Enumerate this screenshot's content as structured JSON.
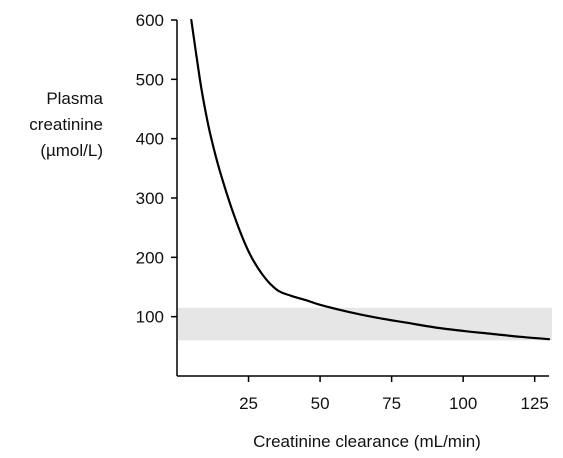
{
  "chart_data": {
    "type": "line",
    "title": "",
    "xlabel": "Creatinine clearance (mL/min)",
    "ylabel_lines": [
      "Plasma",
      "creatinine",
      "(µmol/L)"
    ],
    "xlim": [
      0,
      130
    ],
    "ylim": [
      0,
      600
    ],
    "x_ticks": [
      25,
      50,
      75,
      100,
      125
    ],
    "y_ticks": [
      100,
      200,
      300,
      400,
      500,
      600
    ],
    "grid": false,
    "reference_band": {
      "y_range": [
        60,
        115
      ],
      "color": "#e6e6e6"
    },
    "series": [
      {
        "color": "#000000",
        "x": [
          5,
          8,
          10,
          12,
          15,
          20,
          25,
          30,
          35,
          40,
          45,
          50,
          60,
          70,
          80,
          90,
          100,
          110,
          120,
          130
        ],
        "y": [
          600,
          500,
          445,
          400,
          345,
          270,
          210,
          170,
          145,
          135,
          128,
          120,
          108,
          98,
          90,
          82,
          76,
          71,
          66,
          62
        ]
      }
    ]
  }
}
